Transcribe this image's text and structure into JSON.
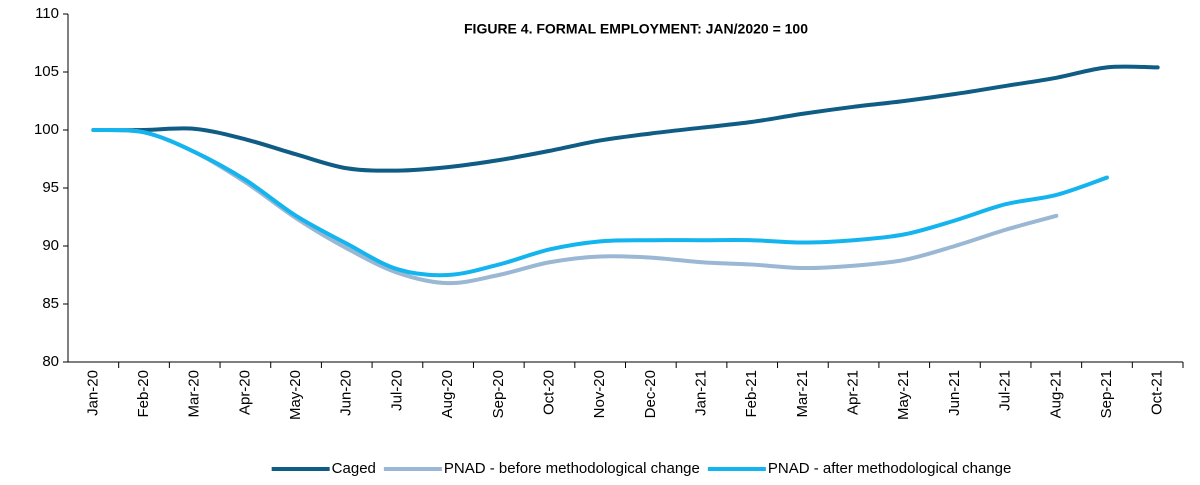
{
  "chart_data": {
    "type": "line",
    "title": "FIGURE 4. FORMAL EMPLOYMENT:   JAN/2020 = 100",
    "categories": [
      "Jan-20",
      "Feb-20",
      "Mar-20",
      "Apr-20",
      "May-20",
      "Jun-20",
      "Jul-20",
      "Aug-20",
      "Sep-20",
      "Oct-20",
      "Nov-20",
      "Dec-20",
      "Jan-21",
      "Feb-21",
      "Mar-21",
      "Apr-21",
      "May-21",
      "Jun-21",
      "Jul-21",
      "Aug-21",
      "Sep-21",
      "Oct-21"
    ],
    "series": [
      {
        "name": "Caged",
        "color": "#0f5c85",
        "values": [
          100,
          100,
          100.1,
          99.2,
          97.9,
          96.7,
          96.5,
          96.8,
          97.4,
          98.2,
          99.1,
          99.7,
          100.2,
          100.7,
          101.4,
          102.0,
          102.5,
          103.1,
          103.8,
          104.5,
          105.4,
          105.4
        ]
      },
      {
        "name": "PNAD - before methodological change",
        "color": "#9ab7d3",
        "values": [
          100,
          99.8,
          98.1,
          95.5,
          92.4,
          89.8,
          87.7,
          86.8,
          87.5,
          88.6,
          89.1,
          89.0,
          88.6,
          88.4,
          88.1,
          88.3,
          88.8,
          90.0,
          91.4,
          92.6,
          null,
          null
        ]
      },
      {
        "name": "PNAD - after methodological change",
        "color": "#14b4ef",
        "values": [
          100,
          99.8,
          98.1,
          95.7,
          92.6,
          90.2,
          88.0,
          87.5,
          88.4,
          89.7,
          90.4,
          90.5,
          90.5,
          90.5,
          90.3,
          90.5,
          91.0,
          92.2,
          93.6,
          94.4,
          95.9,
          null
        ]
      }
    ],
    "ylim": [
      80,
      110
    ],
    "yticks": [
      80,
      85,
      90,
      95,
      100,
      105,
      110
    ],
    "grid": false,
    "legend": "bottom"
  }
}
